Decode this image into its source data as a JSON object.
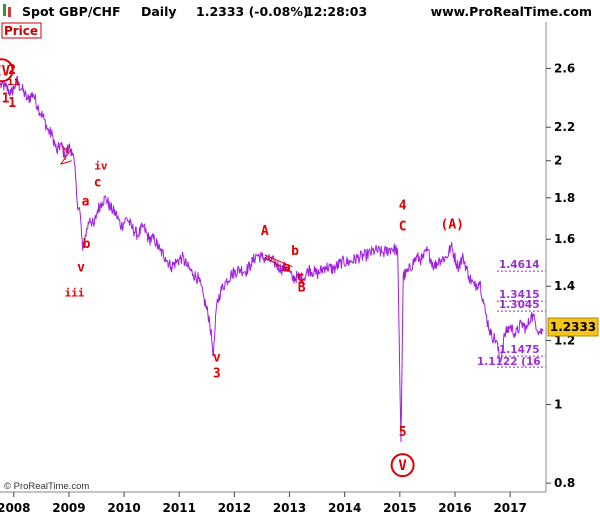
{
  "header": {
    "title": "Spot GBP/CHF",
    "period": "Daily",
    "last": "1.2333 (-0.08%)",
    "time": "12:28:03",
    "site": "www.ProRealTime.com"
  },
  "price_tag": "Price",
  "copyright": "© ProRealTime.com",
  "colors": {
    "series": "#a020e0",
    "wave": "#e00000",
    "level": "#9b30d0",
    "last_bg": "#f5c518"
  },
  "chart_data": {
    "type": "line",
    "title": "",
    "xlabel": "",
    "ylabel": "",
    "scale": "log",
    "ylim": [
      0.78,
      2.95
    ],
    "xlim": [
      2007.75,
      2017.65
    ],
    "x_ticks": [
      "2008",
      "2009",
      "2010",
      "2011",
      "2012",
      "2013",
      "2014",
      "2015",
      "2016",
      "2017"
    ],
    "y_ticks": [
      "2.6",
      "2.2",
      "2",
      "1.8",
      "1.6",
      "1.4",
      "1.2",
      "1",
      "0.8"
    ],
    "last_value": "1.2333",
    "series": [
      {
        "points": [
          [
            2007.75,
            2.48
          ],
          [
            2007.85,
            2.47
          ],
          [
            2007.95,
            2.42
          ],
          [
            2008.05,
            2.5
          ],
          [
            2008.15,
            2.45
          ],
          [
            2008.25,
            2.38
          ],
          [
            2008.35,
            2.42
          ],
          [
            2008.45,
            2.32
          ],
          [
            2008.55,
            2.25
          ],
          [
            2008.62,
            2.18
          ],
          [
            2008.7,
            2.15
          ],
          [
            2008.78,
            2.05
          ],
          [
            2008.85,
            2.1
          ],
          [
            2008.92,
            2.03
          ],
          [
            2009.0,
            2.08
          ],
          [
            2009.05,
            2.06
          ],
          [
            2009.1,
            1.98
          ],
          [
            2009.15,
            1.78
          ],
          [
            2009.2,
            1.73
          ],
          [
            2009.25,
            1.55
          ],
          [
            2009.3,
            1.62
          ],
          [
            2009.38,
            1.7
          ],
          [
            2009.45,
            1.66
          ],
          [
            2009.52,
            1.74
          ],
          [
            2009.6,
            1.78
          ],
          [
            2009.67,
            1.8
          ],
          [
            2009.75,
            1.75
          ],
          [
            2009.85,
            1.72
          ],
          [
            2009.95,
            1.66
          ],
          [
            2010.05,
            1.7
          ],
          [
            2010.15,
            1.65
          ],
          [
            2010.25,
            1.62
          ],
          [
            2010.35,
            1.66
          ],
          [
            2010.45,
            1.6
          ],
          [
            2010.55,
            1.6
          ],
          [
            2010.65,
            1.55
          ],
          [
            2010.75,
            1.52
          ],
          [
            2010.85,
            1.48
          ],
          [
            2010.95,
            1.5
          ],
          [
            2011.05,
            1.52
          ],
          [
            2011.15,
            1.48
          ],
          [
            2011.25,
            1.45
          ],
          [
            2011.35,
            1.43
          ],
          [
            2011.45,
            1.35
          ],
          [
            2011.55,
            1.27
          ],
          [
            2011.62,
            1.15
          ],
          [
            2011.68,
            1.33
          ],
          [
            2011.75,
            1.38
          ],
          [
            2011.85,
            1.42
          ],
          [
            2011.95,
            1.45
          ],
          [
            2012.1,
            1.47
          ],
          [
            2012.2,
            1.46
          ],
          [
            2012.3,
            1.49
          ],
          [
            2012.4,
            1.53
          ],
          [
            2012.5,
            1.52
          ],
          [
            2012.6,
            1.51
          ],
          [
            2012.72,
            1.5
          ],
          [
            2012.85,
            1.47
          ],
          [
            2012.95,
            1.48
          ],
          [
            2013.05,
            1.43
          ],
          [
            2013.15,
            1.44
          ],
          [
            2013.25,
            1.43
          ],
          [
            2013.35,
            1.47
          ],
          [
            2013.5,
            1.45
          ],
          [
            2013.65,
            1.48
          ],
          [
            2013.8,
            1.47
          ],
          [
            2013.95,
            1.5
          ],
          [
            2014.1,
            1.5
          ],
          [
            2014.25,
            1.52
          ],
          [
            2014.4,
            1.53
          ],
          [
            2014.55,
            1.55
          ],
          [
            2014.7,
            1.54
          ],
          [
            2014.85,
            1.56
          ],
          [
            2014.96,
            1.55
          ],
          [
            2015.02,
            0.9
          ],
          [
            2015.06,
            1.44
          ],
          [
            2015.15,
            1.46
          ],
          [
            2015.3,
            1.52
          ],
          [
            2015.4,
            1.51
          ],
          [
            2015.5,
            1.55
          ],
          [
            2015.62,
            1.48
          ],
          [
            2015.72,
            1.51
          ],
          [
            2015.85,
            1.52
          ],
          [
            2015.93,
            1.57
          ],
          [
            2016.05,
            1.48
          ],
          [
            2016.15,
            1.52
          ],
          [
            2016.25,
            1.44
          ],
          [
            2016.35,
            1.4
          ],
          [
            2016.45,
            1.42
          ],
          [
            2016.55,
            1.3
          ],
          [
            2016.65,
            1.22
          ],
          [
            2016.75,
            1.2
          ],
          [
            2016.82,
            1.13
          ],
          [
            2016.9,
            1.22
          ],
          [
            2017.0,
            1.25
          ],
          [
            2017.1,
            1.22
          ],
          [
            2017.2,
            1.26
          ],
          [
            2017.3,
            1.24
          ],
          [
            2017.38,
            1.29
          ],
          [
            2017.45,
            1.27
          ],
          [
            2017.52,
            1.23
          ],
          [
            2017.6,
            1.2333
          ]
        ]
      }
    ],
    "annotations": [
      {
        "text": "IV",
        "x": 2007.78,
        "y": 2.55,
        "circled": true
      },
      {
        "text": "2",
        "x": 2007.97,
        "y": 2.56
      },
      {
        "text": "ii",
        "x": 2008.0,
        "y": 2.48
      },
      {
        "text": "1",
        "x": 2007.85,
        "y": 2.36
      },
      {
        "text": "1",
        "x": 2007.97,
        "y": 2.33
      },
      {
        "text": "iv",
        "x": 2009.58,
        "y": 1.95
      },
      {
        "text": "c",
        "x": 2009.52,
        "y": 1.86
      },
      {
        "text": "a",
        "x": 2009.3,
        "y": 1.76
      },
      {
        "text": "b",
        "x": 2009.32,
        "y": 1.56
      },
      {
        "text": "v",
        "x": 2009.22,
        "y": 1.46
      },
      {
        "text": "iii",
        "x": 2009.1,
        "y": 1.36
      },
      {
        "text": "A",
        "x": 2012.55,
        "y": 1.62
      },
      {
        "text": "b",
        "x": 2013.1,
        "y": 1.53
      },
      {
        "text": "a",
        "x": 2012.95,
        "y": 1.46
      },
      {
        "text": "c",
        "x": 2013.2,
        "y": 1.42
      },
      {
        "text": "B",
        "x": 2013.22,
        "y": 1.38
      },
      {
        "text": "v",
        "x": 2011.68,
        "y": 1.13
      },
      {
        "text": "3",
        "x": 2011.68,
        "y": 1.08
      },
      {
        "text": "4",
        "x": 2015.05,
        "y": 1.74
      },
      {
        "text": "C",
        "x": 2015.05,
        "y": 1.64
      },
      {
        "text": "(A)",
        "x": 2015.95,
        "y": 1.65
      },
      {
        "text": "5",
        "x": 2015.05,
        "y": 0.915
      },
      {
        "text": "V",
        "x": 2015.05,
        "y": 0.83,
        "circled": true
      }
    ],
    "levels": [
      {
        "label": "1.4614",
        "value": 1.4614
      },
      {
        "label": "1.3415",
        "value": 1.3415
      },
      {
        "label": "1.3045",
        "value": 1.3045
      },
      {
        "label": "1.1475",
        "value": 1.1475
      },
      {
        "label": "1.1122 (16",
        "value": 1.1122
      }
    ]
  }
}
